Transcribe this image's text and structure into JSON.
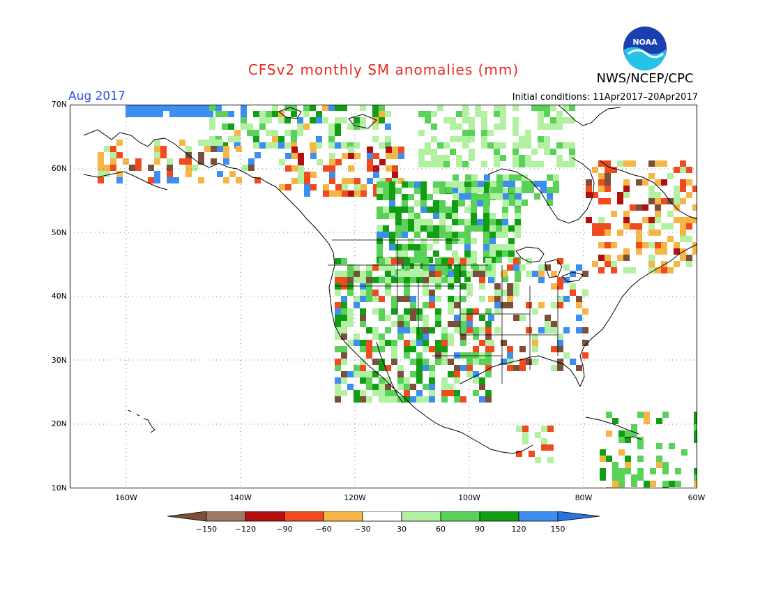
{
  "title": "CFSv2 monthly SM anomalies (mm)",
  "agency": "NWS/NCEP/CPC",
  "logo_text": "NOAA",
  "valid_month": "Aug 2017",
  "initial_conditions": "Initial conditions: 11Apr2017–20Apr2017",
  "lat_labels": [
    "70N",
    "60N",
    "50N",
    "40N",
    "30N",
    "20N",
    "10N"
  ],
  "lon_labels": [
    "160W",
    "140W",
    "120W",
    "100W",
    "80W",
    "60W"
  ],
  "colorbar": {
    "ticks": [
      "−150",
      "−120",
      "−90",
      "−60",
      "−30",
      "30",
      "60",
      "90",
      "120",
      "150"
    ],
    "colors": [
      "#7b4f3a",
      "#a07868",
      "#b40f0f",
      "#f04a1e",
      "#f5b646",
      "#ffffff",
      "#b2f0a2",
      "#5ad25a",
      "#129e12",
      "#3c8ff0",
      "#2b73e0"
    ]
  }
}
